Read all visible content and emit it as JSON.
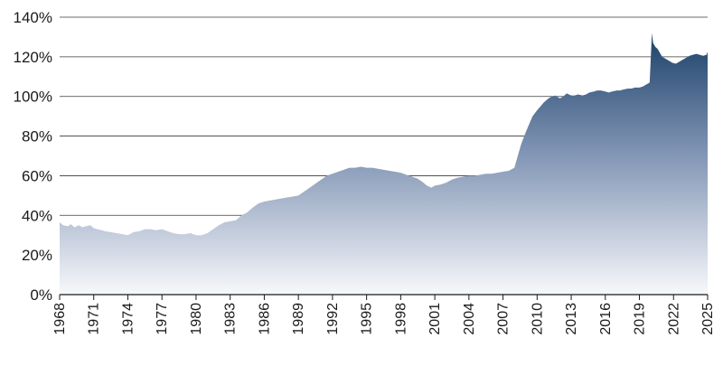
{
  "chart_data": {
    "type": "area",
    "title": "",
    "xlabel": "",
    "ylabel": "",
    "ylim": [
      0,
      140
    ],
    "y_ticks": [
      "0%",
      "20%",
      "40%",
      "60%",
      "80%",
      "100%",
      "120%",
      "140%"
    ],
    "y_tick_values": [
      0,
      20,
      40,
      60,
      80,
      100,
      120,
      140
    ],
    "x_tick_labels": [
      "1968",
      "1971",
      "1974",
      "1977",
      "1980",
      "1983",
      "1986",
      "1989",
      "1992",
      "1995",
      "1998",
      "2001",
      "2004",
      "2007",
      "2010",
      "2013",
      "2016",
      "2019",
      "2022",
      "2025"
    ],
    "x_tick_years": [
      1968,
      1971,
      1974,
      1977,
      1980,
      1983,
      1986,
      1989,
      1992,
      1995,
      1998,
      2001,
      2004,
      2007,
      2010,
      2013,
      2016,
      2019,
      2022,
      2025
    ],
    "grid": "horizontal",
    "legend": "none",
    "colors": {
      "top": "#1c4169",
      "bottom": "#f7f8fb",
      "grid": "#3a3a3a",
      "axis": "#1a1a1a"
    },
    "series": [
      {
        "x": [
          1968.0,
          1968.3,
          1968.7,
          1969.0,
          1969.3,
          1969.7,
          1970.0,
          1970.3,
          1970.7,
          1971.0,
          1971.3,
          1971.7,
          1972.0,
          1972.5,
          1973.0,
          1973.5,
          1974.0,
          1974.5,
          1975.0,
          1975.5,
          1976.0,
          1976.5,
          1977.0,
          1977.5,
          1978.0,
          1978.5,
          1979.0,
          1979.5,
          1980.0,
          1980.5,
          1981.0,
          1981.5,
          1982.0,
          1982.5,
          1983.0,
          1983.5,
          1984.0,
          1984.5,
          1985.0,
          1985.5,
          1986.0,
          1986.5,
          1987.0,
          1987.5,
          1988.0,
          1988.5,
          1989.0,
          1989.5,
          1990.0,
          1990.5,
          1991.0,
          1991.5,
          1992.0,
          1992.5,
          1993.0,
          1993.5,
          1994.0,
          1994.5,
          1995.0,
          1995.5,
          1996.0,
          1996.5,
          1997.0,
          1997.5,
          1998.0,
          1998.5,
          1999.0,
          1999.5,
          2000.0,
          2000.3,
          2000.7,
          2001.0,
          2001.5,
          2002.0,
          2002.5,
          2003.0,
          2003.5,
          2004.0,
          2004.5,
          2005.0,
          2005.5,
          2006.0,
          2006.5,
          2007.0,
          2007.5,
          2008.0,
          2008.3,
          2008.6,
          2009.0,
          2009.3,
          2009.6,
          2010.0,
          2010.3,
          2010.6,
          2011.0,
          2011.3,
          2011.6,
          2012.0,
          2012.3,
          2012.6,
          2013.0,
          2013.3,
          2013.6,
          2014.0,
          2014.3,
          2014.6,
          2015.0,
          2015.3,
          2015.6,
          2016.0,
          2016.3,
          2016.6,
          2017.0,
          2017.3,
          2017.6,
          2018.0,
          2018.3,
          2018.6,
          2019.0,
          2019.3,
          2019.6,
          2019.9,
          2020.1,
          2020.2,
          2020.4,
          2020.6,
          2020.8,
          2021.0,
          2021.3,
          2021.6,
          2021.9,
          2022.2,
          2022.5,
          2022.8,
          2023.1,
          2023.4,
          2023.7,
          2024.0,
          2024.3,
          2024.6,
          2024.9,
          2025.0
        ],
        "values": [
          36.5,
          35.0,
          34.5,
          35.5,
          34.0,
          35.0,
          34.0,
          34.5,
          35.0,
          33.5,
          33.0,
          32.5,
          32.0,
          31.5,
          31.0,
          30.5,
          30.0,
          31.5,
          32.0,
          33.0,
          33.0,
          32.5,
          33.0,
          32.0,
          31.0,
          30.5,
          30.5,
          31.0,
          30.0,
          30.0,
          31.0,
          33.0,
          35.0,
          36.5,
          37.0,
          37.5,
          40.0,
          41.5,
          44.0,
          46.0,
          47.0,
          47.5,
          48.0,
          48.5,
          49.0,
          49.5,
          50.0,
          52.0,
          54.0,
          56.0,
          58.0,
          60.0,
          61.0,
          62.0,
          63.0,
          64.0,
          64.0,
          64.5,
          64.0,
          64.0,
          63.5,
          63.0,
          62.5,
          62.0,
          61.5,
          60.5,
          59.5,
          58.5,
          56.5,
          55.0,
          54.0,
          55.0,
          55.5,
          56.5,
          58.0,
          59.0,
          59.5,
          60.0,
          60.0,
          60.5,
          61.0,
          61.0,
          61.5,
          62.0,
          62.5,
          64.0,
          70.0,
          76.0,
          82.0,
          86.0,
          90.0,
          93.0,
          95.0,
          97.0,
          99.0,
          100.0,
          100.5,
          99.0,
          100.0,
          101.5,
          100.5,
          100.5,
          101.0,
          100.5,
          101.0,
          102.0,
          102.5,
          103.0,
          103.0,
          102.5,
          102.0,
          102.5,
          103.0,
          103.0,
          103.5,
          104.0,
          104.0,
          104.5,
          104.5,
          105.0,
          106.0,
          107.0,
          132.0,
          127.0,
          125.0,
          124.0,
          122.0,
          120.0,
          119.0,
          118.0,
          117.0,
          116.5,
          117.5,
          118.5,
          119.5,
          120.5,
          121.0,
          121.5,
          121.0,
          120.5,
          121.0,
          122.5
        ]
      }
    ]
  }
}
